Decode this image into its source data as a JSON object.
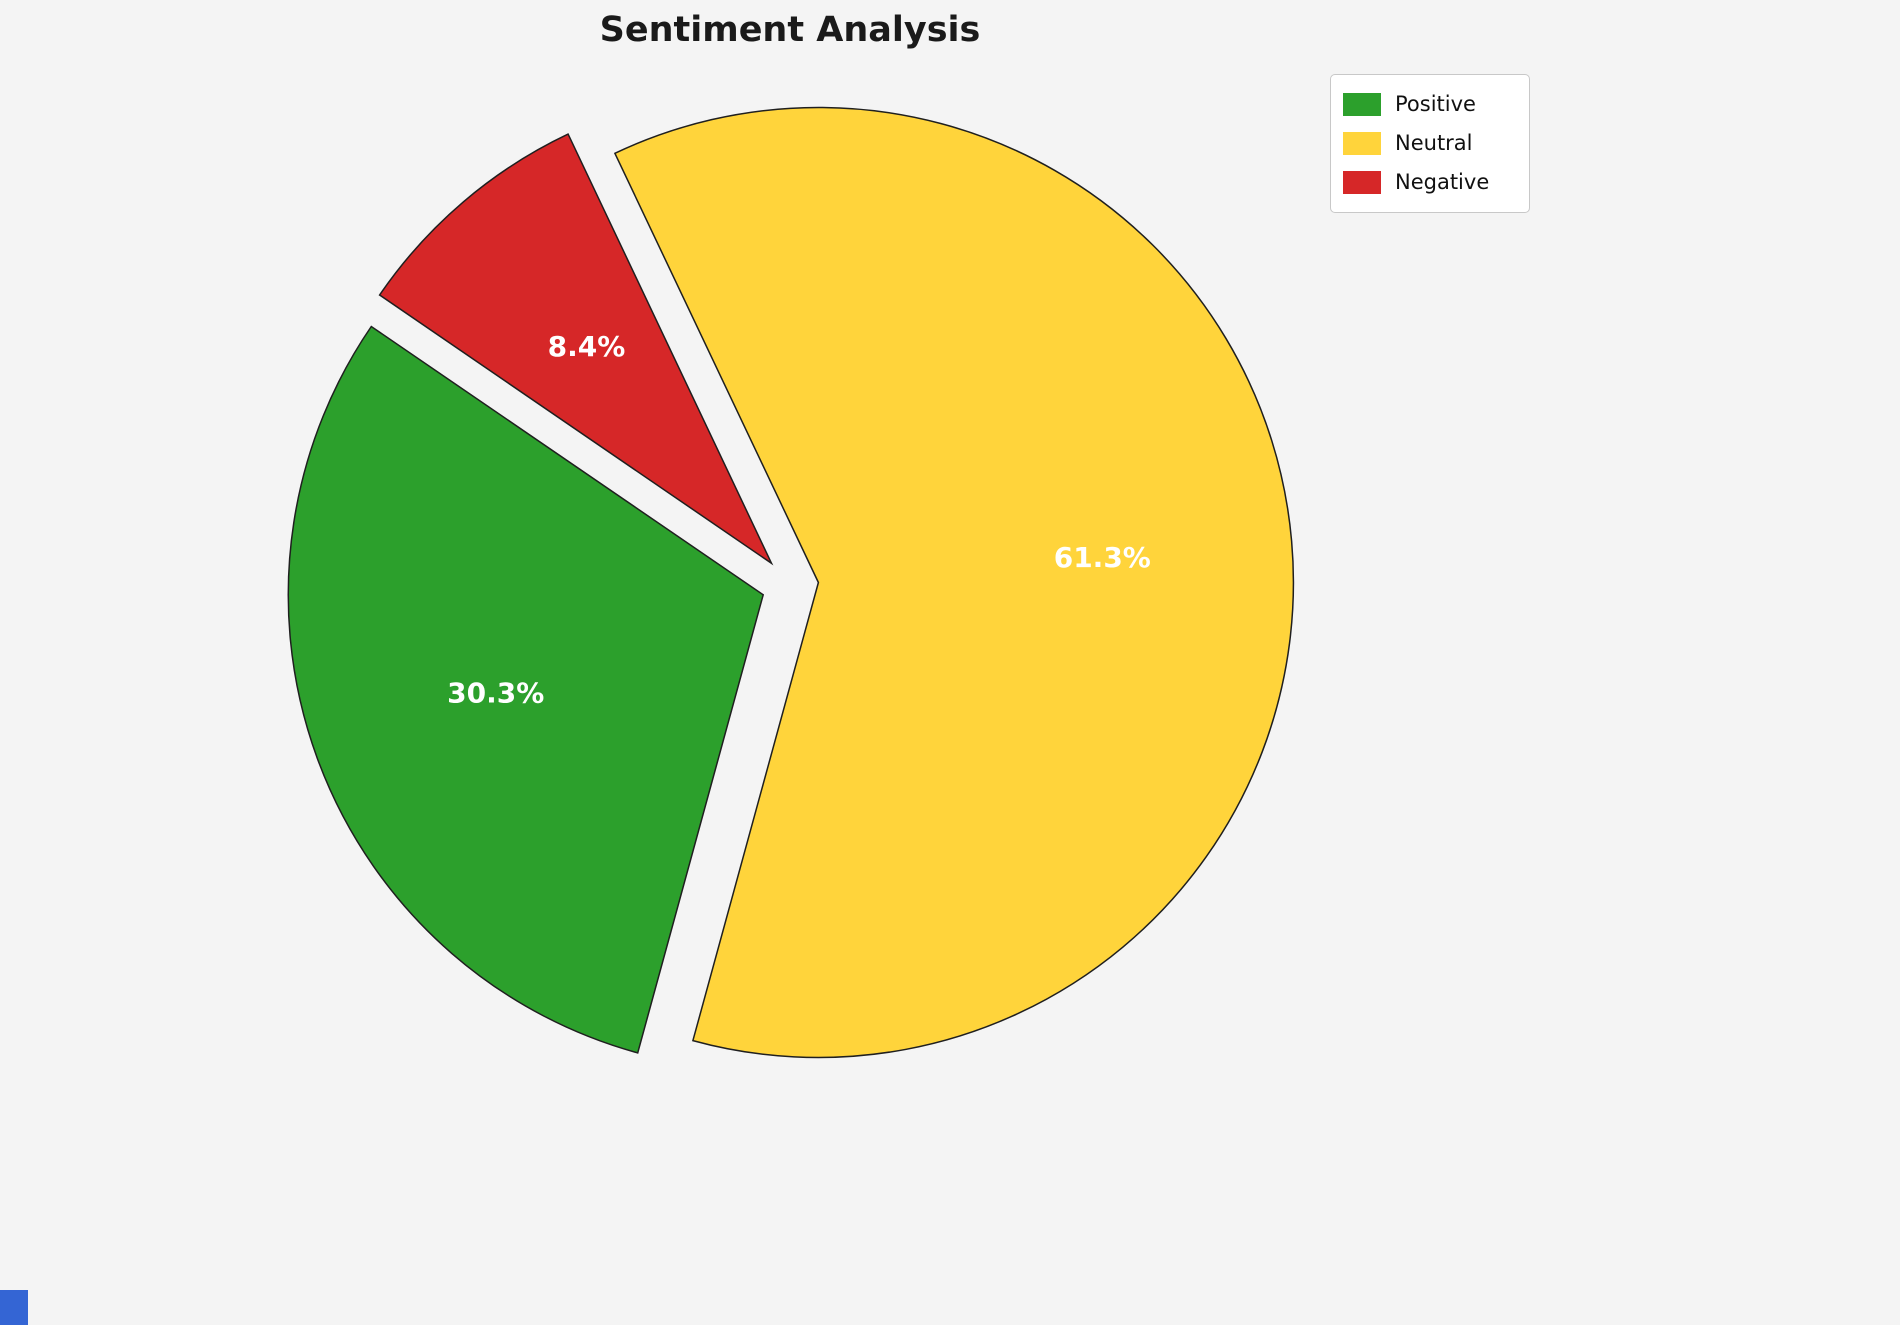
{
  "page": {
    "background_color": "#f4f4f4",
    "corner_accent_color": "#3465d4"
  },
  "chart_data": {
    "type": "pie",
    "title": "Sentiment Analysis",
    "slices": [
      {
        "label": "Positive",
        "value": 30.3,
        "pct_label": "30.3%",
        "color": "#2CA02C"
      },
      {
        "label": "Neutral",
        "value": 61.3,
        "pct_label": "61.3%",
        "color": "#FFD43B"
      },
      {
        "label": "Negative",
        "value": 8.4,
        "pct_label": "8.4%",
        "color": "#D62728"
      }
    ],
    "start_angle": 145.6,
    "direction": "counterclockwise",
    "explode": 0.06,
    "pct_distance": 0.6,
    "edge_color": "#1f1f1f",
    "autopct_color": "#ffffff",
    "legend": {
      "position": "upper right",
      "labels": [
        "Positive",
        "Neutral",
        "Negative"
      ]
    }
  }
}
